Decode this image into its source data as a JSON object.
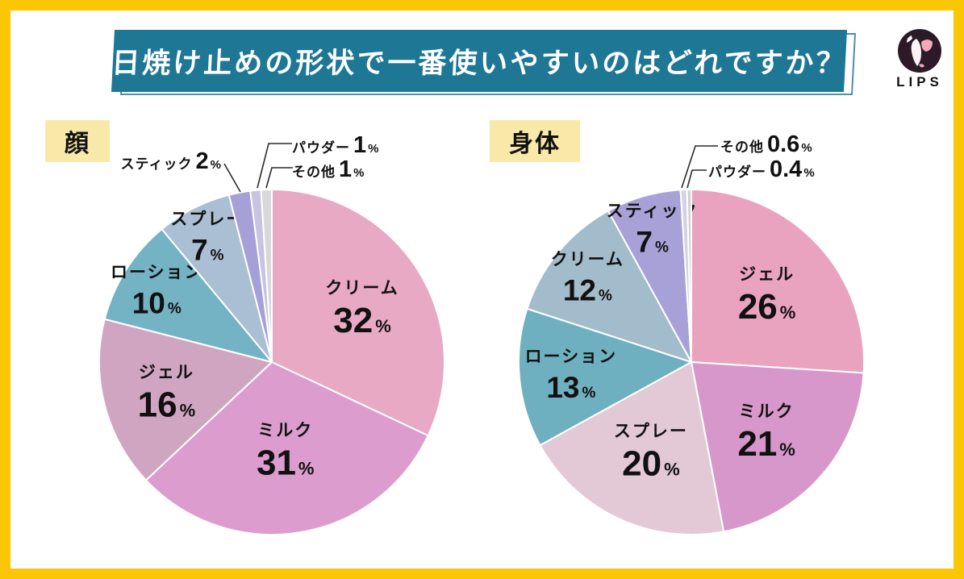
{
  "page": {
    "title_banner": "日焼け止めの形状で一番使いやすいのはどれですか？",
    "brand": "LIPS",
    "border_color": "#fbc604",
    "banner_color": "#1e7795",
    "banner_shadow_color": "#4d90ad",
    "chip_color": "#f9e9a9",
    "background": "#ffffff"
  },
  "chart_data": [
    {
      "type": "pie",
      "title": "顔",
      "unit": "%",
      "direction": "clockwise",
      "start_angle_deg": 0,
      "slices": [
        {
          "label": "クリーム",
          "value": 32,
          "color": "#e7a9c3",
          "label_position": "inside"
        },
        {
          "label": "ミルク",
          "value": 31,
          "color": "#dc9dce",
          "label_position": "inside"
        },
        {
          "label": "ジェル",
          "value": 16,
          "color": "#d0a5c1",
          "label_position": "inside"
        },
        {
          "label": "ローション",
          "value": 10,
          "color": "#73b3c3",
          "label_position": "inside"
        },
        {
          "label": "スプレー",
          "value": 7,
          "color": "#aabfd4",
          "label_position": "inside"
        },
        {
          "label": "スティック",
          "value": 2,
          "color": "#a5a0d8",
          "label_position": "outside"
        },
        {
          "label": "パウダー",
          "value": 1,
          "color": "#c7c3e1",
          "label_position": "outside"
        },
        {
          "label": "その他",
          "value": 1,
          "color": "#d8d8d8",
          "label_position": "outside"
        }
      ]
    },
    {
      "type": "pie",
      "title": "身体",
      "unit": "%",
      "direction": "clockwise",
      "start_angle_deg": 0,
      "slices": [
        {
          "label": "ジェル",
          "value": 26,
          "color": "#eaa3bf",
          "label_position": "inside"
        },
        {
          "label": "ミルク",
          "value": 21,
          "color": "#d797ca",
          "label_position": "inside"
        },
        {
          "label": "スプレー",
          "value": 20,
          "color": "#e3c8d6",
          "label_position": "inside"
        },
        {
          "label": "ローション",
          "value": 13,
          "color": "#6fb0c0",
          "label_position": "inside"
        },
        {
          "label": "クリーム",
          "value": 12,
          "color": "#a3bccb",
          "label_position": "inside"
        },
        {
          "label": "スティック",
          "value": 7,
          "color": "#a8a1d8",
          "label_position": "inside"
        },
        {
          "label": "その他",
          "value": 0.6,
          "color": "#d5d2e2",
          "label_position": "outside"
        },
        {
          "label": "パウダー",
          "value": 0.4,
          "color": "#d0d0d0",
          "label_position": "outside"
        }
      ]
    }
  ]
}
